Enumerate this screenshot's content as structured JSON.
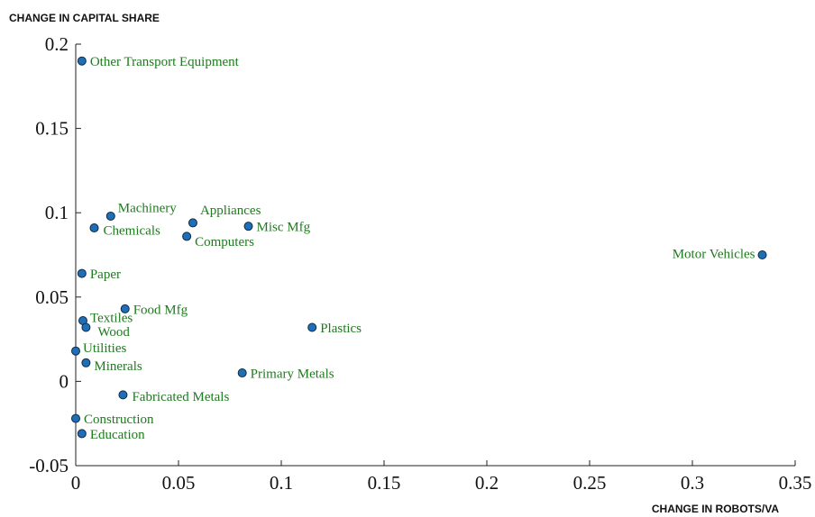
{
  "chart_data": {
    "type": "scatter",
    "ylabel": "CHANGE IN CAPITAL SHARE",
    "xlabel": "CHANGE IN ROBOTS/VA",
    "labels": [
      "Other Transport Equipment",
      "Machinery",
      "Chemicals",
      "Appliances",
      "Misc Mfg",
      "Computers",
      "Motor Vehicles",
      "Paper",
      "Food Mfg",
      "Textiles",
      "Wood",
      "Plastics",
      "Utilities",
      "Minerals",
      "Primary Metals",
      "Fabricated Metals",
      "Construction",
      "Education"
    ],
    "x": [
      0.003,
      0.017,
      0.009,
      0.057,
      0.084,
      0.054,
      0.334,
      0.003,
      0.024,
      0.0035,
      0.005,
      0.115,
      0.0,
      0.005,
      0.081,
      0.023,
      0.0,
      0.003
    ],
    "values": [
      0.19,
      0.098,
      0.091,
      0.094,
      0.092,
      0.086,
      0.075,
      0.064,
      0.043,
      0.036,
      0.032,
      0.032,
      0.018,
      0.011,
      0.005,
      -0.008,
      -0.022,
      -0.031
    ],
    "color": "#1f6fb8",
    "label_color": "#1e7a1e",
    "xlim": [
      0,
      0.35
    ],
    "xticks": [
      0,
      0.05,
      0.1,
      0.15,
      0.2,
      0.25,
      0.3,
      0.35
    ],
    "ylim": [
      -0.05,
      0.2
    ],
    "yticks": [
      -0.05,
      0,
      0.05,
      0.1,
      0.15,
      0.2
    ]
  }
}
